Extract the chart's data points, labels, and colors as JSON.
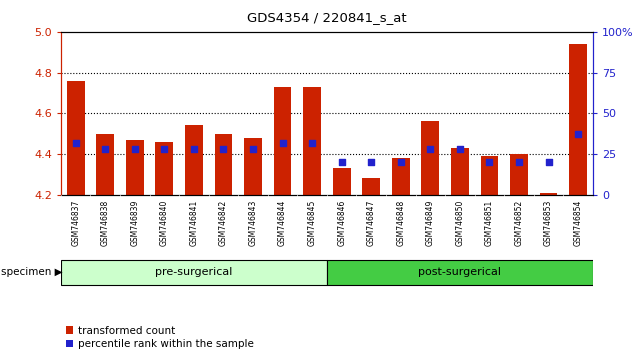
{
  "title": "GDS4354 / 220841_s_at",
  "samples": [
    "GSM746837",
    "GSM746838",
    "GSM746839",
    "GSM746840",
    "GSM746841",
    "GSM746842",
    "GSM746843",
    "GSM746844",
    "GSM746845",
    "GSM746846",
    "GSM746847",
    "GSM746848",
    "GSM746849",
    "GSM746850",
    "GSM746851",
    "GSM746852",
    "GSM746853",
    "GSM746854"
  ],
  "transformed_count": [
    4.76,
    4.5,
    4.47,
    4.46,
    4.54,
    4.5,
    4.48,
    4.73,
    4.73,
    4.33,
    4.28,
    4.38,
    4.56,
    4.43,
    4.39,
    4.4,
    4.21,
    4.94
  ],
  "percentile_rank": [
    32,
    28,
    28,
    28,
    28,
    28,
    28,
    32,
    32,
    20,
    20,
    20,
    28,
    28,
    20,
    20,
    20,
    37
  ],
  "ylim_left": [
    4.2,
    5.0
  ],
  "ylim_right": [
    0,
    100
  ],
  "yticks_left": [
    4.2,
    4.4,
    4.6,
    4.8,
    5.0
  ],
  "yticks_right": [
    0,
    25,
    50,
    75,
    100
  ],
  "bar_color": "#cc2200",
  "percentile_color": "#2222cc",
  "pre_surgical_count": 9,
  "post_surgical_count": 9,
  "pre_surgical_color": "#ccffcc",
  "post_surgical_color": "#44cc44",
  "specimen_label": "specimen",
  "pre_label": "pre-surgerical",
  "post_label": "post-surgerical",
  "legend_bar": "transformed count",
  "legend_pct": "percentile rank within the sample",
  "bg_color": "#ffffff",
  "plot_bg": "#ffffff",
  "axis_left_color": "#cc2200",
  "axis_right_color": "#2222cc",
  "bar_bottom": 4.2,
  "fig_width": 6.41,
  "fig_height": 3.54,
  "gridline_vals": [
    4.4,
    4.6,
    4.8
  ]
}
